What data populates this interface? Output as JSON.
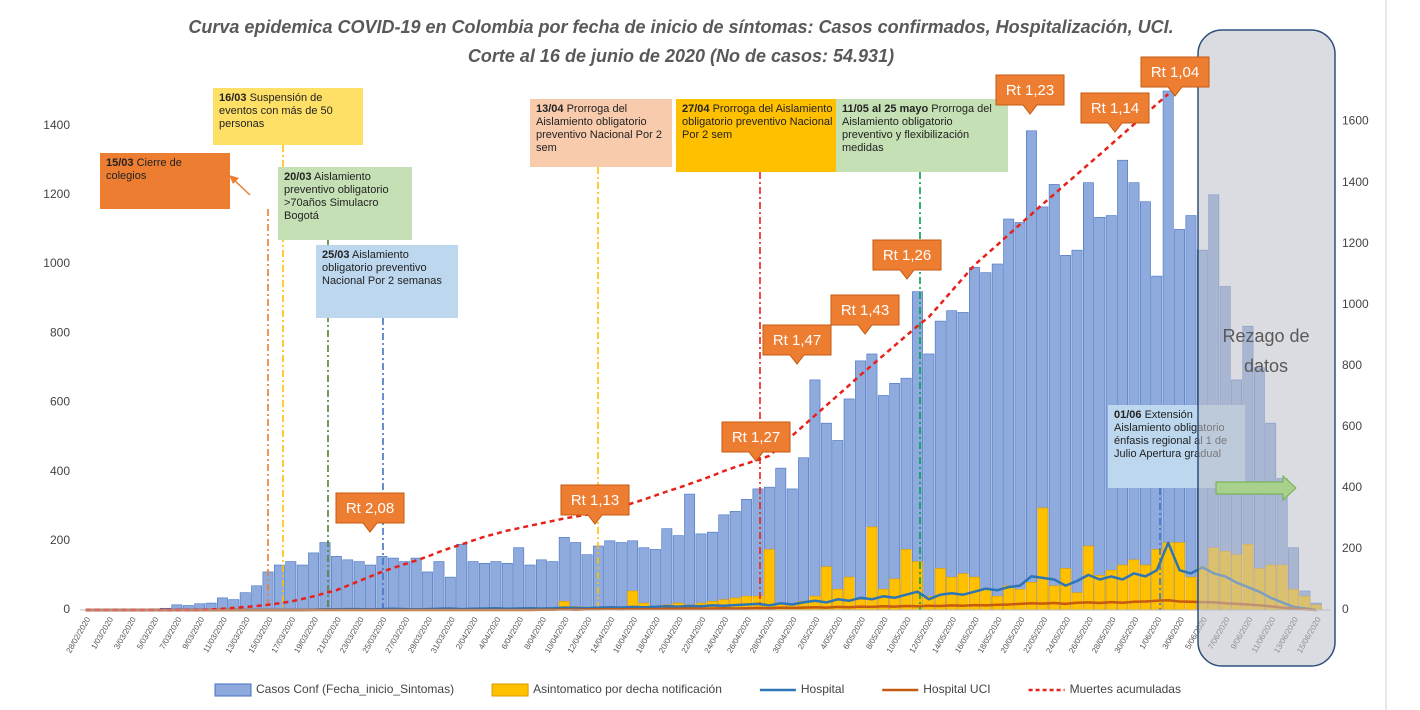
{
  "chart_data": {
    "type": "bar",
    "title": "Curva epidemica COVID-19 en Colombia  por fecha de inicio de síntomas: Casos confirmados, Hospitalización, UCI.",
    "subtitle": "Corte  al 16 de junio de 2020 (No de casos: 54.931)",
    "categories": [
      "28/02/2020",
      null,
      "1/03/2020",
      null,
      "3/03/2020",
      null,
      "5/03/2020",
      null,
      "7/03/2020",
      null,
      "9/03/2020",
      null,
      "11/03/2020",
      null,
      "13/03/2020",
      null,
      "15/03/2020",
      null,
      "17/03/2020",
      null,
      "19/03/2020",
      null,
      "21/03/2020",
      null,
      "23/03/2020",
      null,
      "25/03/2020",
      null,
      "27/03/2020",
      null,
      "29/03/2020",
      null,
      "31/03/2020",
      null,
      "2/04/2020",
      null,
      "4/04/2020",
      null,
      "6/04/2020",
      null,
      "8/04/2020",
      null,
      "10/04/2020",
      null,
      "12/04/2020",
      null,
      "14/04/2020",
      null,
      "16/04/2020",
      null,
      "18/04/2020",
      null,
      "20/04/2020",
      null,
      "22/04/2020",
      null,
      "24/04/2020",
      null,
      "26/04/2020",
      null,
      "28/04/2020",
      null,
      "30/04/2020",
      null,
      "2/05/2020",
      null,
      "4/05/2020",
      null,
      "6/05/2020",
      null,
      "8/05/2020",
      null,
      "10/05/2020",
      null,
      "12/05/2020",
      null,
      "14/05/2020",
      null,
      "16/05/2020",
      null,
      "18/05/2020",
      null,
      "20/05/2020",
      null,
      "22/05/2020",
      null,
      "24/05/2020",
      null,
      "26/05/2020",
      null,
      "28/05/2020",
      null,
      "30/05/2020",
      null,
      "1/06/2020",
      null,
      "3/06/2020",
      null,
      "5/06/2020",
      null,
      "7/06/2020",
      null,
      "9/06/2020",
      null,
      "11/06/2020",
      null,
      "13/06/2020",
      null,
      "15/06/2020"
    ],
    "series": [
      {
        "name": "Casos Conf (Fecha_inicio_Sintomas)",
        "type": "bar",
        "color": "#8faadc",
        "axis": "y",
        "values": [
          0,
          0,
          0,
          0,
          1,
          0,
          3,
          5,
          15,
          13,
          18,
          20,
          35,
          30,
          50,
          70,
          110,
          130,
          140,
          130,
          165,
          195,
          155,
          145,
          140,
          130,
          155,
          150,
          140,
          150,
          110,
          140,
          95,
          190,
          140,
          135,
          140,
          135,
          180,
          130,
          145,
          140,
          210,
          195,
          160,
          185,
          200,
          195,
          200,
          180,
          175,
          235,
          215,
          335,
          220,
          225,
          275,
          285,
          320,
          350,
          355,
          410,
          350,
          440,
          665,
          540,
          490,
          610,
          720,
          740,
          620,
          655,
          670,
          920,
          740,
          835,
          865,
          860,
          990,
          975,
          1000,
          1130,
          1120,
          1385,
          1165,
          1230,
          1025,
          1040,
          1235,
          1135,
          1140,
          1300,
          1235,
          1180,
          965,
          1500,
          1100,
          1140,
          1040,
          1200,
          935,
          665,
          820,
          700,
          540,
          380,
          180,
          55,
          20
        ]
      },
      {
        "name": "Asintomatico  por decha notificación",
        "type": "bar",
        "color": "#ffc000",
        "axis": "y",
        "values": [
          0,
          0,
          0,
          0,
          0,
          0,
          0,
          0,
          0,
          0,
          0,
          0,
          0,
          0,
          0,
          0,
          0,
          0,
          0,
          0,
          0,
          0,
          0,
          0,
          0,
          0,
          0,
          0,
          0,
          0,
          0,
          0,
          0,
          0,
          0,
          0,
          0,
          0,
          0,
          0,
          3,
          5,
          25,
          10,
          8,
          5,
          10,
          8,
          55,
          20,
          10,
          15,
          20,
          15,
          20,
          25,
          30,
          35,
          40,
          40,
          175,
          20,
          15,
          25,
          40,
          125,
          60,
          95,
          30,
          240,
          60,
          90,
          175,
          140,
          40,
          120,
          95,
          105,
          95,
          60,
          40,
          70,
          60,
          80,
          295,
          70,
          120,
          50,
          185,
          100,
          115,
          130,
          145,
          130,
          175,
          195,
          195,
          95,
          125,
          180,
          170,
          160,
          190,
          120,
          130,
          130,
          60,
          40,
          15
        ]
      },
      {
        "name": "Hospital",
        "type": "line",
        "color": "#2e75b6",
        "axis": "y2",
        "values": [
          0,
          0,
          0,
          0,
          0,
          0,
          0,
          0,
          0,
          0,
          0,
          0,
          0,
          0,
          0,
          0,
          0,
          0,
          0,
          0,
          1,
          2,
          2,
          3,
          3,
          2,
          3,
          4,
          3,
          2,
          3,
          4,
          5,
          3,
          4,
          5,
          6,
          4,
          5,
          6,
          5,
          6,
          8,
          7,
          6,
          8,
          9,
          8,
          10,
          9,
          10,
          12,
          11,
          13,
          12,
          15,
          14,
          16,
          18,
          20,
          15,
          22,
          18,
          25,
          30,
          25,
          35,
          30,
          40,
          35,
          45,
          40,
          50,
          60,
          35,
          50,
          55,
          50,
          60,
          70,
          65,
          75,
          80,
          110,
          105,
          100,
          80,
          95,
          115,
          100,
          110,
          100,
          120,
          110,
          130,
          220,
          130,
          120,
          140,
          120,
          110,
          90,
          75,
          60,
          40,
          25,
          10,
          5,
          0
        ]
      },
      {
        "name": "Hospital UCI",
        "type": "line",
        "color": "#c55a11",
        "axis": "y2",
        "values": [
          0,
          0,
          0,
          0,
          0,
          0,
          0,
          0,
          0,
          0,
          0,
          0,
          0,
          0,
          0,
          0,
          0,
          0,
          0,
          0,
          0,
          0,
          0,
          0,
          0,
          0,
          0,
          0,
          0,
          0,
          0,
          0,
          0,
          0,
          0,
          0,
          0,
          0,
          0,
          0,
          1,
          1,
          2,
          1,
          2,
          2,
          3,
          2,
          3,
          3,
          3,
          4,
          4,
          5,
          4,
          5,
          6,
          5,
          6,
          7,
          6,
          8,
          7,
          8,
          9,
          8,
          10,
          9,
          11,
          10,
          12,
          11,
          13,
          12,
          14,
          13,
          15,
          14,
          16,
          15,
          17,
          18,
          20,
          22,
          21,
          23,
          20,
          24,
          25,
          23,
          26,
          24,
          27,
          28,
          30,
          32,
          28,
          27,
          26,
          25,
          22,
          20,
          18,
          15,
          12,
          8,
          5,
          2,
          0
        ]
      },
      {
        "name": "Muertes acumuladas",
        "type": "line",
        "color": "#e8211a",
        "axis": "y2",
        "dashed": true,
        "values": [
          0,
          0,
          0,
          0,
          0,
          0,
          0,
          0,
          0,
          0,
          0,
          2,
          4,
          7,
          10,
          13,
          17,
          22,
          28,
          36,
          45,
          55,
          65,
          80,
          95,
          110,
          125,
          138,
          150,
          162,
          175,
          190,
          203,
          215,
          228,
          240,
          250,
          260,
          268,
          276,
          284,
          292,
          300,
          306,
          312,
          318,
          326,
          338,
          350,
          362,
          375,
          388,
          400,
          413,
          426,
          440,
          455,
          468,
          480,
          492,
          505,
          538,
          571,
          604,
          637,
          670,
          703,
          736,
          770,
          802,
          834,
          866,
          898,
          930,
          960,
          1002,
          1045,
          1087,
          1130,
          1163,
          1196,
          1230,
          1263,
          1296,
          1330,
          1362,
          1395,
          1427,
          1460,
          1492,
          1525,
          1558,
          1591,
          1624,
          1657,
          1690,
          null,
          null,
          null,
          null,
          null,
          null,
          null,
          null,
          null,
          null,
          null,
          null,
          null
        ]
      }
    ],
    "ylim": [
      0,
      1500
    ],
    "yticks": [
      0,
      200,
      400,
      600,
      800,
      1000,
      1200,
      1400
    ],
    "y2lim": [
      0,
      1700
    ],
    "y2ticks": [
      0,
      200,
      400,
      600,
      800,
      1000,
      1200,
      1400,
      1600
    ],
    "grid": false,
    "legend": "bottom",
    "annotations": [
      {
        "date": "15/03",
        "text": "Cierre de colegios"
      },
      {
        "date": "16/03",
        "text": "Suspensión de eventos con más de 50 personas"
      },
      {
        "date": "20/03",
        "text": "Aislamiento preventivo obligatorio  >70años Simulacro Bogotá"
      },
      {
        "date": "25/03",
        "text": "Aislamiento obligatorio preventivo Nacional Por 2 semanas"
      },
      {
        "date": "13/04",
        "text": "Prorroga del Aislamiento obligatorio preventivo  Nacional  Por 2 sem"
      },
      {
        "date": "27/04",
        "text": "Prorroga del Aislamiento obligatorio preventivo  Nacional  Por 2 sem"
      },
      {
        "date": "11/05 al 25 mayo",
        "text": "Prorroga del Aislamiento obligatorio preventivo y flexibilización medidas"
      },
      {
        "date": "01/06",
        "text": "Extensión Aislamiento obligatorio énfasis regional al 1 de Julio Apertura gradual"
      }
    ],
    "rt_labels": [
      "Rt 2,08",
      "Rt 1,13",
      "Rt 1,27",
      "Rt 1,47",
      "Rt 1,43",
      "Rt 1,26",
      "Rt 1,23",
      "Rt 1,14",
      "Rt 1,04"
    ],
    "overlay_label": "Rezago de datos"
  }
}
